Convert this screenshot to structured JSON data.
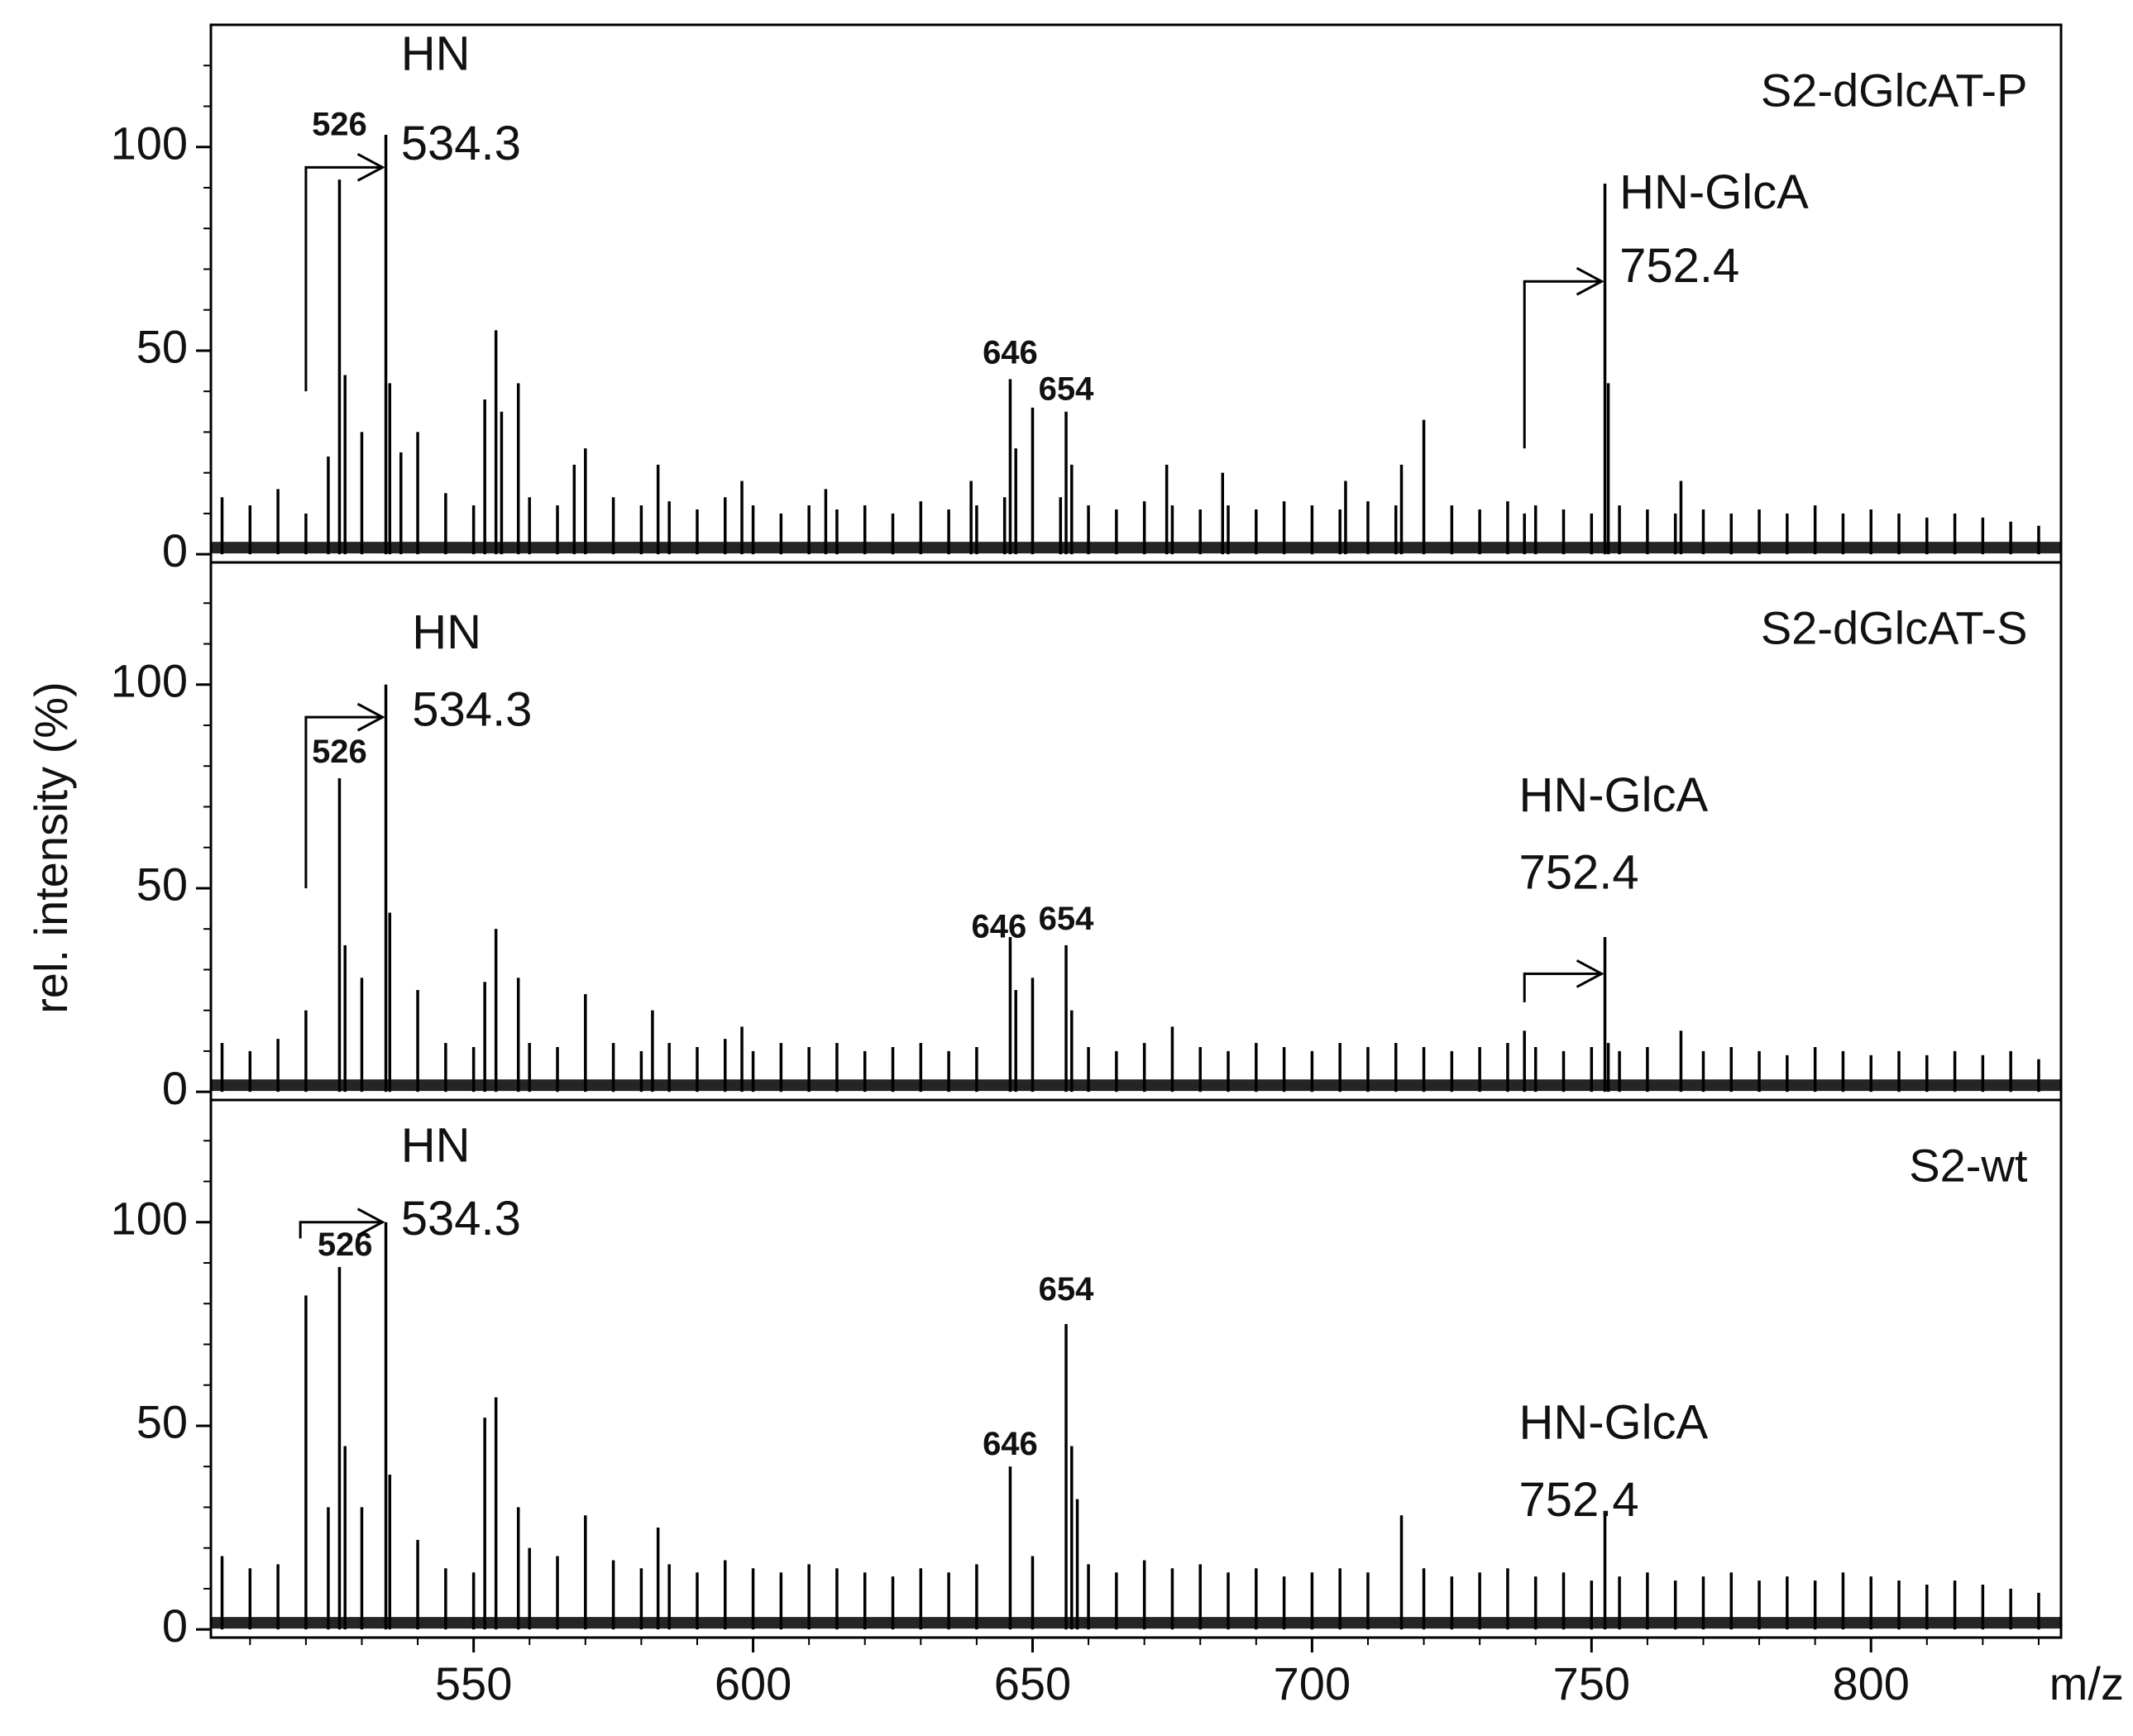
{
  "chart_data": [
    {
      "type": "stick",
      "title": "S2-dGlcAT-P",
      "color": "#000000",
      "annotations": [
        "HN",
        "534.3",
        "526",
        "HN-GlcA",
        "752.4",
        "646",
        "654"
      ],
      "xlim": [
        503,
        834
      ],
      "ylim": [
        -2,
        130
      ],
      "yticks": [
        0,
        50,
        100
      ],
      "x": [
        505,
        510,
        515,
        520,
        524,
        526,
        527,
        530,
        534.3,
        535,
        537,
        540,
        545,
        550,
        552,
        554,
        555,
        558,
        560,
        565,
        568,
        570,
        575,
        580,
        583,
        585,
        590,
        595,
        598,
        600,
        605,
        610,
        613,
        615,
        620,
        625,
        630,
        635,
        639,
        640,
        645,
        646,
        647,
        650,
        655,
        656,
        657,
        660,
        665,
        670,
        674,
        675,
        680,
        684,
        685,
        690,
        695,
        700,
        705,
        706,
        710,
        715,
        716,
        720,
        725,
        730,
        735,
        738,
        740,
        745,
        750,
        752.4,
        753,
        755,
        760,
        765,
        766,
        770,
        775,
        780,
        785,
        790,
        795,
        800,
        805,
        810,
        815,
        820,
        825,
        830
      ],
      "values": [
        14,
        12,
        16,
        10,
        24,
        92,
        44,
        30,
        103,
        42,
        25,
        30,
        15,
        12,
        38,
        55,
        35,
        42,
        14,
        12,
        22,
        26,
        14,
        12,
        22,
        13,
        11,
        14,
        18,
        12,
        10,
        12,
        16,
        11,
        12,
        10,
        13,
        11,
        18,
        12,
        14,
        43,
        26,
        36,
        14,
        35,
        22,
        12,
        11,
        13,
        22,
        12,
        11,
        20,
        12,
        11,
        13,
        12,
        11,
        18,
        13,
        12,
        22,
        33,
        12,
        11,
        13,
        10,
        12,
        11,
        10,
        91,
        42,
        12,
        11,
        10,
        18,
        11,
        10,
        11,
        10,
        12,
        10,
        11,
        10,
        9,
        10,
        9,
        8,
        7
      ]
    },
    {
      "type": "stick",
      "title": "S2-dGlcAT-S",
      "color": "#000000",
      "ylabel": "rel. intensity (%)",
      "annotations": [
        "HN",
        "534.3",
        "526",
        "HN-GlcA",
        "752.4",
        "646",
        "654"
      ],
      "xlim": [
        503,
        834
      ],
      "ylim": [
        -2,
        130
      ],
      "yticks": [
        0,
        50,
        100
      ],
      "x": [
        505,
        510,
        515,
        520,
        526,
        527,
        530,
        534.3,
        535,
        540,
        545,
        550,
        552,
        554,
        558,
        560,
        565,
        570,
        575,
        580,
        582,
        585,
        590,
        595,
        598,
        600,
        605,
        610,
        615,
        620,
        625,
        630,
        635,
        640,
        646,
        647,
        650,
        656,
        657,
        660,
        665,
        670,
        675,
        680,
        685,
        690,
        695,
        700,
        705,
        710,
        715,
        720,
        725,
        730,
        735,
        738,
        740,
        745,
        750,
        752.4,
        753,
        755,
        760,
        766,
        770,
        775,
        780,
        785,
        790,
        795,
        800,
        805,
        810,
        815,
        820,
        825,
        830
      ],
      "values": [
        12,
        10,
        13,
        20,
        77,
        36,
        28,
        100,
        44,
        25,
        12,
        11,
        27,
        40,
        28,
        12,
        11,
        24,
        12,
        10,
        20,
        12,
        11,
        13,
        16,
        10,
        12,
        11,
        12,
        10,
        11,
        12,
        10,
        11,
        38,
        25,
        28,
        36,
        20,
        11,
        10,
        12,
        16,
        11,
        10,
        12,
        11,
        10,
        12,
        11,
        12,
        11,
        10,
        11,
        12,
        15,
        11,
        10,
        11,
        38,
        12,
        10,
        11,
        15,
        10,
        11,
        10,
        9,
        11,
        10,
        9,
        10,
        9,
        10,
        9,
        10,
        8
      ]
    },
    {
      "type": "stick",
      "title": "S2-wt",
      "color": "#000000",
      "xlabel": "m/z",
      "annotations": [
        "HN",
        "534.3",
        "526",
        "654",
        "646",
        "HN-GlcA",
        "752.4"
      ],
      "xlim": [
        503,
        834
      ],
      "ylim": [
        -2,
        130
      ],
      "yticks": [
        0,
        50,
        100
      ],
      "xticks": [
        550,
        600,
        650,
        700,
        750,
        800
      ],
      "x": [
        505,
        510,
        515,
        520,
        524,
        526,
        527,
        530,
        534.3,
        535,
        540,
        545,
        550,
        552,
        554,
        558,
        560,
        565,
        570,
        575,
        580,
        583,
        585,
        590,
        595,
        600,
        605,
        610,
        615,
        620,
        625,
        630,
        635,
        640,
        646,
        650,
        656,
        657,
        658,
        660,
        665,
        670,
        675,
        680,
        685,
        690,
        695,
        700,
        705,
        710,
        716,
        720,
        725,
        730,
        735,
        740,
        745,
        750,
        752.4,
        755,
        760,
        765,
        770,
        775,
        780,
        785,
        790,
        795,
        800,
        805,
        810,
        815,
        820,
        825,
        830
      ],
      "values": [
        18,
        15,
        16,
        82,
        30,
        89,
        45,
        30,
        100,
        38,
        22,
        15,
        14,
        52,
        57,
        30,
        20,
        18,
        28,
        17,
        15,
        25,
        16,
        14,
        17,
        15,
        14,
        16,
        15,
        14,
        13,
        15,
        14,
        16,
        40,
        18,
        75,
        45,
        32,
        16,
        14,
        17,
        15,
        16,
        14,
        15,
        13,
        14,
        15,
        14,
        28,
        15,
        13,
        14,
        15,
        13,
        14,
        12,
        28,
        13,
        14,
        12,
        13,
        14,
        12,
        13,
        12,
        14,
        13,
        12,
        11,
        12,
        11,
        10,
        9
      ]
    }
  ]
}
